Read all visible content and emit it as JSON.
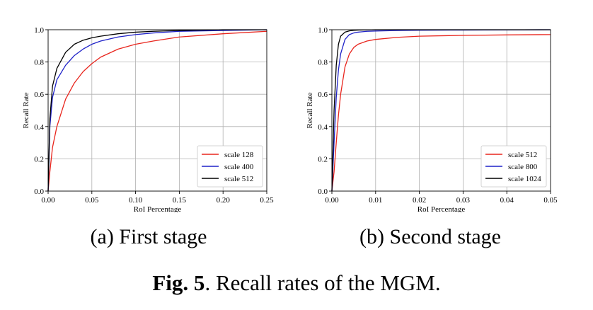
{
  "chart_data": [
    {
      "type": "line",
      "title": "",
      "xlabel": "RoI Percentage",
      "ylabel": "Recall Rate",
      "xlim": [
        0,
        0.25
      ],
      "ylim": [
        0,
        1.0
      ],
      "xticks": [
        0.0,
        0.05,
        0.1,
        0.15,
        0.2,
        0.25
      ],
      "xtick_labels": [
        "0.00",
        "0.05",
        "0.10",
        "0.15",
        "0.20",
        "0.25"
      ],
      "yticks": [
        0.0,
        0.2,
        0.4,
        0.6,
        0.8,
        1.0
      ],
      "ytick_labels": [
        "0.0",
        "0.2",
        "0.4",
        "0.6",
        "0.8",
        "1.0"
      ],
      "grid": true,
      "legend_position": "bottom-right",
      "series": [
        {
          "name": "scale 128",
          "color": "#e8251d",
          "x": [
            0,
            0.002,
            0.005,
            0.01,
            0.02,
            0.03,
            0.04,
            0.05,
            0.06,
            0.08,
            0.1,
            0.12,
            0.15,
            0.2,
            0.25
          ],
          "y": [
            0,
            0.12,
            0.27,
            0.4,
            0.57,
            0.67,
            0.74,
            0.79,
            0.83,
            0.88,
            0.91,
            0.93,
            0.955,
            0.975,
            0.99
          ]
        },
        {
          "name": "scale 400",
          "color": "#1f22c8",
          "x": [
            0,
            0.002,
            0.005,
            0.01,
            0.02,
            0.03,
            0.04,
            0.05,
            0.06,
            0.08,
            0.1,
            0.12,
            0.15,
            0.2,
            0.25
          ],
          "y": [
            0,
            0.4,
            0.58,
            0.69,
            0.78,
            0.84,
            0.88,
            0.91,
            0.93,
            0.955,
            0.97,
            0.98,
            0.99,
            0.995,
            1.0
          ]
        },
        {
          "name": "scale 512",
          "color": "#000000",
          "x": [
            0,
            0.002,
            0.005,
            0.01,
            0.02,
            0.03,
            0.04,
            0.05,
            0.06,
            0.08,
            0.1,
            0.12,
            0.15,
            0.2,
            0.25
          ],
          "y": [
            0,
            0.45,
            0.65,
            0.76,
            0.86,
            0.91,
            0.935,
            0.95,
            0.96,
            0.975,
            0.985,
            0.99,
            0.995,
            1.0,
            1.0
          ]
        }
      ]
    },
    {
      "type": "line",
      "title": "",
      "xlabel": "RoI Percentage",
      "ylabel": "Recall Rate",
      "xlim": [
        0,
        0.05
      ],
      "ylim": [
        0,
        1.0
      ],
      "xticks": [
        0.0,
        0.01,
        0.02,
        0.03,
        0.04,
        0.05
      ],
      "xtick_labels": [
        "0.00",
        "0.01",
        "0.02",
        "0.03",
        "0.04",
        "0.05"
      ],
      "yticks": [
        0.0,
        0.2,
        0.4,
        0.6,
        0.8,
        1.0
      ],
      "ytick_labels": [
        "0.0",
        "0.2",
        "0.4",
        "0.6",
        "0.8",
        "1.0"
      ],
      "grid": true,
      "legend_position": "bottom-right",
      "series": [
        {
          "name": "scale 512",
          "color": "#e8251d",
          "x": [
            0,
            0.0005,
            0.001,
            0.0015,
            0.002,
            0.003,
            0.004,
            0.005,
            0.006,
            0.008,
            0.01,
            0.015,
            0.02,
            0.03,
            0.04,
            0.05
          ],
          "y": [
            0,
            0.12,
            0.3,
            0.47,
            0.6,
            0.77,
            0.85,
            0.89,
            0.91,
            0.93,
            0.94,
            0.953,
            0.96,
            0.965,
            0.968,
            0.97
          ]
        },
        {
          "name": "scale 800",
          "color": "#1f22c8",
          "x": [
            0,
            0.0005,
            0.001,
            0.0015,
            0.002,
            0.003,
            0.004,
            0.005,
            0.006,
            0.008,
            0.01,
            0.015,
            0.02,
            0.03,
            0.04,
            0.05
          ],
          "y": [
            0,
            0.3,
            0.58,
            0.75,
            0.85,
            0.94,
            0.97,
            0.98,
            0.985,
            0.99,
            0.992,
            0.995,
            0.997,
            0.998,
            0.999,
            1.0
          ]
        },
        {
          "name": "scale 1024",
          "color": "#000000",
          "x": [
            0,
            0.0005,
            0.001,
            0.0015,
            0.002,
            0.003,
            0.004,
            0.005,
            0.006,
            0.008,
            0.01,
            0.015,
            0.02,
            0.03,
            0.04,
            0.05
          ],
          "y": [
            0,
            0.5,
            0.78,
            0.91,
            0.96,
            0.985,
            0.993,
            0.996,
            0.998,
            0.999,
            1.0,
            1.0,
            1.0,
            1.0,
            1.0,
            1.0
          ]
        }
      ]
    }
  ],
  "captions": {
    "a": "(a) First stage",
    "b": "(b) Second stage",
    "fig_label": "Fig. 5",
    "fig_text": ". Recall rates of the MGM."
  }
}
